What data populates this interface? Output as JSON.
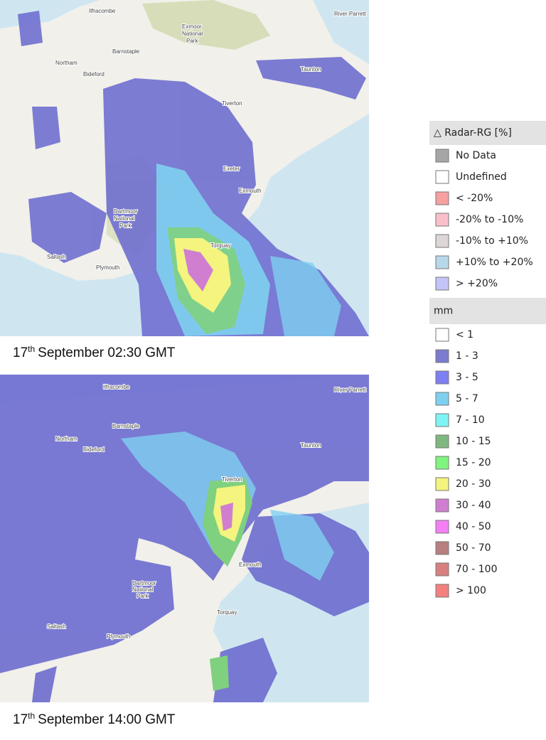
{
  "maps": [
    {
      "caption": {
        "day": "17",
        "suffix": "th",
        "rest": "September 02:30 GMT"
      },
      "places": [
        "Ilfracombe",
        "Exmoor",
        "National",
        "Park",
        "Barnstaple",
        "Northam",
        "Bideford",
        "Taunton",
        "Tiverton",
        "Exeter",
        "Exmouth",
        "Dartmoor",
        "National",
        "Park",
        "Saltash",
        "Plymouth",
        "Torquay",
        "River Parrett"
      ]
    },
    {
      "caption": {
        "day": "17",
        "suffix": "th",
        "rest": "September 14:00 GMT"
      },
      "places": [
        "Ilfracombe",
        "Barnstaple",
        "Northam",
        "Bideford",
        "Taunton",
        "Tiverton",
        "Exmouth",
        "Dartmoor",
        "National",
        "Park",
        "Saltash",
        "Plymouth",
        "Torquay",
        "River Parrett"
      ]
    }
  ],
  "legend": [
    {
      "title": "△ Radar-RG [%]",
      "items": [
        {
          "label": "No Data",
          "color": "#a6a6a6"
        },
        {
          "label": "Undefined",
          "color": "#ffffff"
        },
        {
          "label": "< -20%",
          "color": "#f7a0a0"
        },
        {
          "label": "-20% to -10%",
          "color": "#f9c0cc"
        },
        {
          "label": "-10% to +10%",
          "color": "#dcd6d6"
        },
        {
          "label": "+10% to +20%",
          "color": "#b8d8ea"
        },
        {
          "label": "> +20%",
          "color": "#c4c4f8"
        }
      ]
    },
    {
      "title": "mm",
      "items": [
        {
          "label": "< 1",
          "color": "#ffffff"
        },
        {
          "label": "1 - 3",
          "color": "#7b7bd0"
        },
        {
          "label": "3 - 5",
          "color": "#7f7ff4"
        },
        {
          "label": "5 - 7",
          "color": "#7fd0f0"
        },
        {
          "label": "7 - 10",
          "color": "#7ff4f4"
        },
        {
          "label": "10 - 15",
          "color": "#7fb87f"
        },
        {
          "label": "15 - 20",
          "color": "#7ff47f"
        },
        {
          "label": "20 - 30",
          "color": "#f4f47f"
        },
        {
          "label": "30 - 40",
          "color": "#d07fd0"
        },
        {
          "label": "40 - 50",
          "color": "#f47ff4"
        },
        {
          "label": "50 - 70",
          "color": "#b87f7f"
        },
        {
          "label": "70 - 100",
          "color": "#d87f7f"
        },
        {
          "label": "> 100",
          "color": "#f47f7f"
        }
      ]
    }
  ]
}
